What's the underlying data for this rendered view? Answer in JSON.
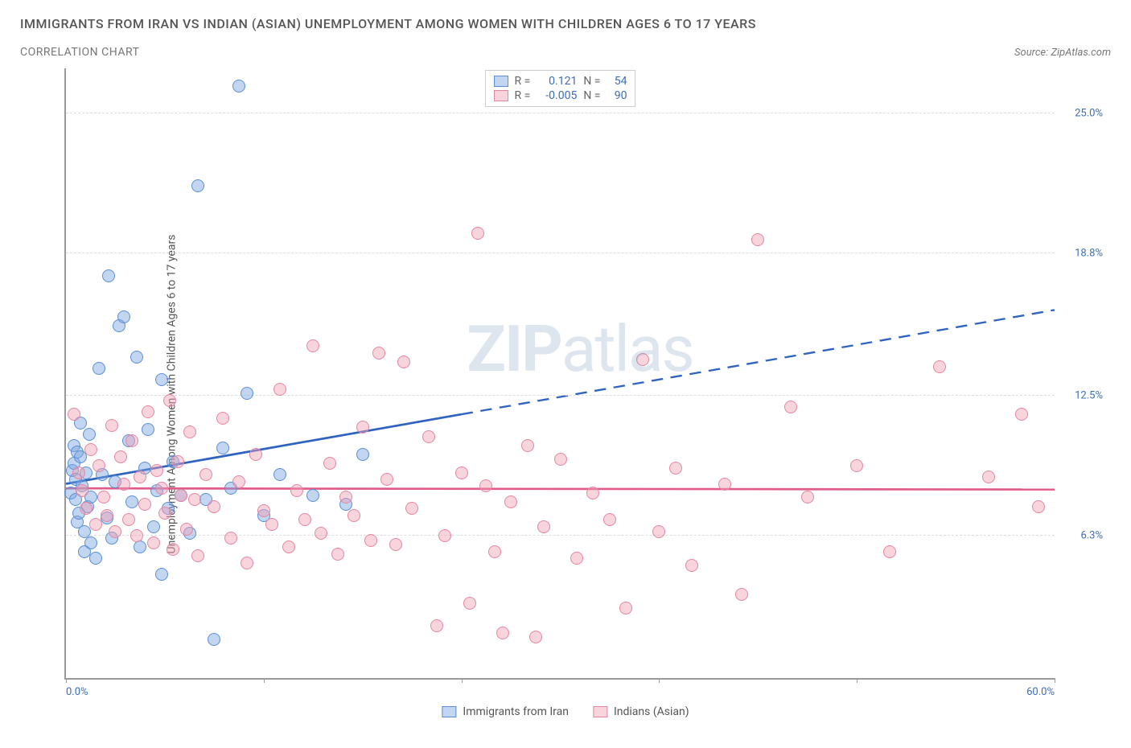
{
  "title": "IMMIGRANTS FROM IRAN VS INDIAN (ASIAN) UNEMPLOYMENT AMONG WOMEN WITH CHILDREN AGES 6 TO 17 YEARS",
  "subtitle": "CORRELATION CHART",
  "source_prefix": "Source: ",
  "source_name": "ZipAtlas.com",
  "ylabel": "Unemployment Among Women with Children Ages 6 to 17 years",
  "watermark_bold": "ZIP",
  "watermark_light": "atlas",
  "chart": {
    "type": "scatter",
    "xlim": [
      0,
      60
    ],
    "ylim": [
      0,
      27
    ],
    "xticks": [
      0,
      12,
      24,
      36,
      48,
      60
    ],
    "xtick_labels": {
      "0": "0.0%",
      "60": "60.0%"
    },
    "yticks": [
      6.3,
      12.5,
      18.8,
      25.0
    ],
    "ytick_labels": [
      "6.3%",
      "12.5%",
      "18.8%",
      "25.0%"
    ],
    "grid_color": "#dddddd",
    "axis_color": "#999999",
    "background": "#ffffff",
    "series": [
      {
        "name": "Immigrants from Iran",
        "fill": "rgba(120,165,225,0.45)",
        "stroke": "#5a8fd6",
        "reg_color": "#2f63c0",
        "reg_y_at_x0": 8.6,
        "reg_y_at_xmax": 16.3,
        "reg_solid_until_x": 24,
        "marker_r": 8,
        "R_label": "R =",
        "R": "0.121",
        "N_label": "N =",
        "N": "54",
        "points": [
          [
            0.3,
            8.2
          ],
          [
            0.4,
            9.2
          ],
          [
            0.5,
            10.3
          ],
          [
            0.5,
            9.5
          ],
          [
            0.6,
            8.8
          ],
          [
            0.6,
            7.9
          ],
          [
            0.7,
            10.0
          ],
          [
            0.7,
            6.9
          ],
          [
            0.8,
            7.3
          ],
          [
            0.9,
            9.8
          ],
          [
            0.9,
            11.3
          ],
          [
            1.0,
            8.5
          ],
          [
            1.1,
            6.5
          ],
          [
            1.1,
            5.6
          ],
          [
            1.2,
            9.1
          ],
          [
            1.3,
            7.6
          ],
          [
            1.4,
            10.8
          ],
          [
            1.5,
            8.0
          ],
          [
            1.5,
            6.0
          ],
          [
            1.8,
            5.3
          ],
          [
            2.0,
            13.7
          ],
          [
            2.2,
            9.0
          ],
          [
            2.5,
            7.1
          ],
          [
            2.6,
            17.8
          ],
          [
            2.8,
            6.2
          ],
          [
            3.0,
            8.7
          ],
          [
            3.2,
            15.6
          ],
          [
            3.5,
            16.0
          ],
          [
            3.8,
            10.5
          ],
          [
            4.0,
            7.8
          ],
          [
            4.3,
            14.2
          ],
          [
            4.5,
            5.8
          ],
          [
            4.8,
            9.3
          ],
          [
            5.0,
            11.0
          ],
          [
            5.3,
            6.7
          ],
          [
            5.5,
            8.3
          ],
          [
            5.8,
            13.2
          ],
          [
            5.8,
            4.6
          ],
          [
            6.2,
            7.5
          ],
          [
            6.5,
            9.6
          ],
          [
            7.0,
            8.1
          ],
          [
            7.5,
            6.4
          ],
          [
            8.0,
            21.8
          ],
          [
            8.5,
            7.9
          ],
          [
            9.0,
            1.7
          ],
          [
            9.5,
            10.2
          ],
          [
            10.0,
            8.4
          ],
          [
            10.5,
            26.2
          ],
          [
            11.0,
            12.6
          ],
          [
            12.0,
            7.2
          ],
          [
            13.0,
            9.0
          ],
          [
            15.0,
            8.1
          ],
          [
            17.0,
            7.7
          ],
          [
            18.0,
            9.9
          ]
        ]
      },
      {
        "name": "Indians (Asian)",
        "fill": "rgba(240,160,180,0.45)",
        "stroke": "#e486a0",
        "reg_color": "#e05a8a",
        "reg_y_at_x0": 8.4,
        "reg_y_at_xmax": 8.35,
        "reg_solid_until_x": 60,
        "marker_r": 8,
        "R_label": "R =",
        "R": "-0.005",
        "N_label": "N =",
        "N": "90",
        "points": [
          [
            0.5,
            11.7
          ],
          [
            0.8,
            9.1
          ],
          [
            1.0,
            8.3
          ],
          [
            1.2,
            7.5
          ],
          [
            1.5,
            10.1
          ],
          [
            1.8,
            6.8
          ],
          [
            2.0,
            9.4
          ],
          [
            2.3,
            8.0
          ],
          [
            2.5,
            7.2
          ],
          [
            2.8,
            11.2
          ],
          [
            3.0,
            6.5
          ],
          [
            3.3,
            9.8
          ],
          [
            3.5,
            8.6
          ],
          [
            3.8,
            7.0
          ],
          [
            4.0,
            10.5
          ],
          [
            4.3,
            6.3
          ],
          [
            4.5,
            8.9
          ],
          [
            4.8,
            7.7
          ],
          [
            5.0,
            11.8
          ],
          [
            5.3,
            6.0
          ],
          [
            5.5,
            9.2
          ],
          [
            5.8,
            8.4
          ],
          [
            6.0,
            7.3
          ],
          [
            6.3,
            12.3
          ],
          [
            6.5,
            5.7
          ],
          [
            6.8,
            9.6
          ],
          [
            7.0,
            8.1
          ],
          [
            7.3,
            6.6
          ],
          [
            7.5,
            10.9
          ],
          [
            7.8,
            7.9
          ],
          [
            8.0,
            5.4
          ],
          [
            8.5,
            9.0
          ],
          [
            9.0,
            7.6
          ],
          [
            9.5,
            11.5
          ],
          [
            10.0,
            6.2
          ],
          [
            10.5,
            8.7
          ],
          [
            11.0,
            5.1
          ],
          [
            11.5,
            9.9
          ],
          [
            12.0,
            7.4
          ],
          [
            12.5,
            6.8
          ],
          [
            13.0,
            12.8
          ],
          [
            13.5,
            5.8
          ],
          [
            14.0,
            8.3
          ],
          [
            14.5,
            7.0
          ],
          [
            15.0,
            14.7
          ],
          [
            15.5,
            6.4
          ],
          [
            16.0,
            9.5
          ],
          [
            16.5,
            5.5
          ],
          [
            17.0,
            8.0
          ],
          [
            17.5,
            7.2
          ],
          [
            18.0,
            11.1
          ],
          [
            18.5,
            6.1
          ],
          [
            19.0,
            14.4
          ],
          [
            19.5,
            8.8
          ],
          [
            20.0,
            5.9
          ],
          [
            20.5,
            14.0
          ],
          [
            21.0,
            7.5
          ],
          [
            22.0,
            10.7
          ],
          [
            22.5,
            2.3
          ],
          [
            23.0,
            6.3
          ],
          [
            24.0,
            9.1
          ],
          [
            24.5,
            3.3
          ],
          [
            25.0,
            19.7
          ],
          [
            25.5,
            8.5
          ],
          [
            26.0,
            5.6
          ],
          [
            26.5,
            2.0
          ],
          [
            27.0,
            7.8
          ],
          [
            28.0,
            10.3
          ],
          [
            28.5,
            1.8
          ],
          [
            29.0,
            6.7
          ],
          [
            30.0,
            9.7
          ],
          [
            31.0,
            5.3
          ],
          [
            32.0,
            8.2
          ],
          [
            33.0,
            7.0
          ],
          [
            34.0,
            3.1
          ],
          [
            35.0,
            14.1
          ],
          [
            36.0,
            6.5
          ],
          [
            37.0,
            9.3
          ],
          [
            38.0,
            5.0
          ],
          [
            40.0,
            8.6
          ],
          [
            41.0,
            3.7
          ],
          [
            42.0,
            19.4
          ],
          [
            44.0,
            12.0
          ],
          [
            45.0,
            8.0
          ],
          [
            48.0,
            9.4
          ],
          [
            50.0,
            5.6
          ],
          [
            53.0,
            13.8
          ],
          [
            56.0,
            8.9
          ],
          [
            58.0,
            11.7
          ],
          [
            59.0,
            7.6
          ]
        ]
      }
    ]
  },
  "legend_bottom": [
    {
      "label": "Immigrants from Iran",
      "fill": "rgba(120,165,225,0.45)",
      "stroke": "#5a8fd6"
    },
    {
      "label": "Indians (Asian)",
      "fill": "rgba(240,160,180,0.45)",
      "stroke": "#e486a0"
    }
  ]
}
